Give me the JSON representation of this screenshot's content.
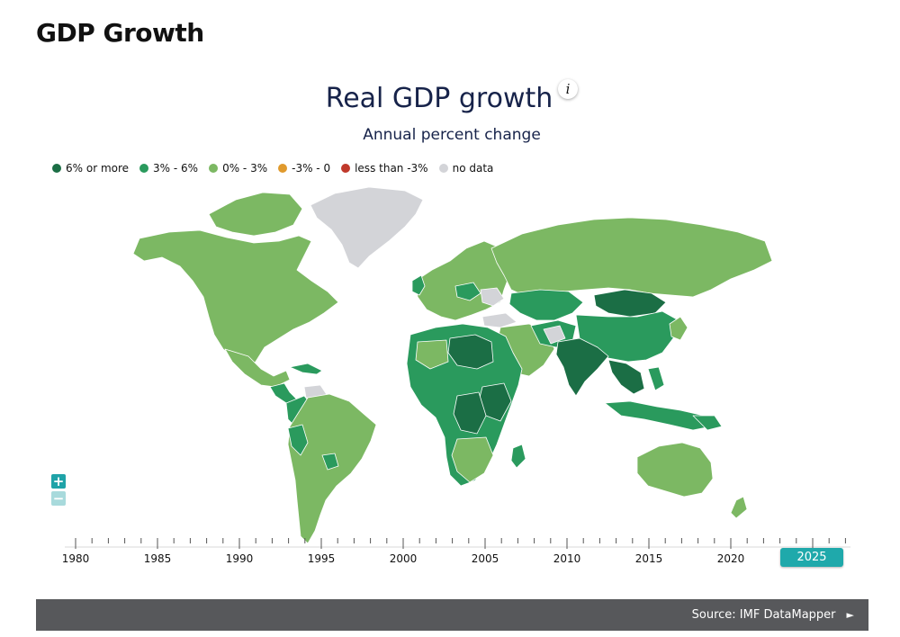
{
  "page": {
    "heading": "GDP Growth"
  },
  "map": {
    "title": "Real GDP growth",
    "subtitle": "Annual percent change",
    "info_icon": "i"
  },
  "legend": [
    {
      "label": "6% or more",
      "color": "#1b6e45"
    },
    {
      "label": "3% - 6%",
      "color": "#2a9a5d"
    },
    {
      "label": "0% - 3%",
      "color": "#7cb863"
    },
    {
      "label": "-3% - 0",
      "color": "#e09a2d"
    },
    {
      "label": "less than -3%",
      "color": "#c0392b"
    },
    {
      "label": "no data",
      "color": "#d3d4d8"
    }
  ],
  "zoom": {
    "in_label": "+",
    "out_label": "−"
  },
  "timeline": {
    "years": [
      "1980",
      "1985",
      "1990",
      "1995",
      "2000",
      "2005",
      "2010",
      "2015",
      "2020"
    ],
    "selected_year": "2025"
  },
  "footer": {
    "source_label": "Source: IMF DataMapper",
    "arrow": "►"
  }
}
